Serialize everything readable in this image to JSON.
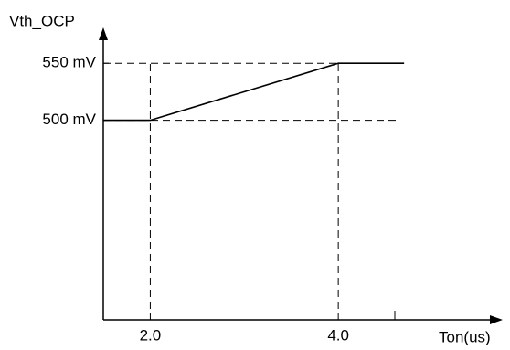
{
  "chart_data": {
    "type": "line",
    "y_label": "Vth_OCP",
    "x_label": "Ton(us)",
    "x": [
      1.5,
      2,
      4,
      4.7
    ],
    "series": [
      {
        "color": "#000000",
        "values": [
          500,
          500,
          550,
          550
        ]
      }
    ],
    "xlim": [
      1.5,
      5.7
    ],
    "ylim": [
      325,
      575
    ],
    "xticks": [
      {
        "value": 2,
        "label": "2.0"
      },
      {
        "value": 4,
        "label": "4.0"
      }
    ],
    "yticks": [
      {
        "value": 500,
        "label": "500 mV"
      },
      {
        "value": 550,
        "label": "550 mV"
      }
    ],
    "grid": true
  }
}
